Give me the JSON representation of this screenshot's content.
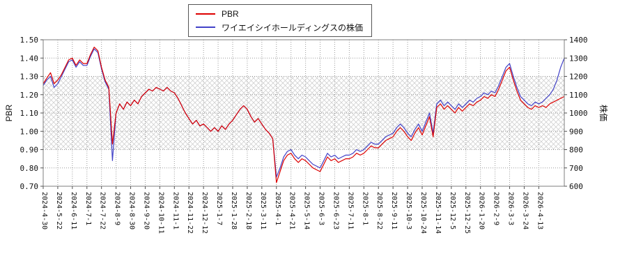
{
  "legend": {
    "items": [
      "PBR",
      "ワイエイシイホールディングスの株価"
    ]
  },
  "chart_data": {
    "type": "line",
    "grid": "dotted",
    "legend_position": "top-center",
    "band": {
      "axis": "left",
      "from": 0.9,
      "to": 1.3,
      "style": "crosshatch",
      "color": "#c9c9c9"
    },
    "left_axis": {
      "label": "PBR",
      "min": 0.7,
      "max": 1.5,
      "tick_labels": [
        "0.70",
        "0.80",
        "0.90",
        "1.00",
        "1.10",
        "1.20",
        "1.30",
        "1.40",
        "1.50"
      ],
      "tick_values": [
        0.7,
        0.8,
        0.9,
        1.0,
        1.1,
        1.2,
        1.3,
        1.4,
        1.5
      ]
    },
    "right_axis": {
      "label": "株価",
      "min": 600,
      "max": 1400,
      "tick_labels": [
        "600",
        "700",
        "800",
        "900",
        "1000",
        "1100",
        "1200",
        "1300",
        "1400"
      ],
      "tick_values": [
        600,
        700,
        800,
        900,
        1000,
        1100,
        1200,
        1300,
        1400
      ]
    },
    "x_tick_labels": [
      "2024-4-30",
      "2024-5-22",
      "2024-6-11",
      "2024-7-1",
      "2024-7-22",
      "2024-8-9",
      "2024-8-30",
      "2024-9-20",
      "2024-10-11",
      "2024-11-1",
      "2024-11-22",
      "2024-12-12",
      "2025-1-7",
      "2025-1-28",
      "2025-2-18",
      "2025-3-11",
      "2025-4-1",
      "2025-4-21",
      "2025-5-14",
      "2025-6-3",
      "2025-6-23",
      "2025-7-11",
      "2025-8-1",
      "2025-8-22",
      "2025-9-11",
      "2025-10-3",
      "2025-10-24",
      "2025-11-14",
      "2025-12-5",
      "2025-12-25",
      "2026-1-20",
      "2026-2-9",
      "2026-3-3",
      "2026-3-24",
      "2026-4-13"
    ],
    "tick_every": 4,
    "series": [
      {
        "name": "PBR",
        "axis": "left",
        "color": "#dd0000",
        "values": [
          1.26,
          1.29,
          1.32,
          1.26,
          1.28,
          1.31,
          1.35,
          1.39,
          1.4,
          1.36,
          1.39,
          1.37,
          1.37,
          1.42,
          1.46,
          1.44,
          1.35,
          1.28,
          1.24,
          0.93,
          1.1,
          1.15,
          1.12,
          1.16,
          1.14,
          1.17,
          1.15,
          1.19,
          1.21,
          1.23,
          1.22,
          1.24,
          1.23,
          1.22,
          1.24,
          1.22,
          1.21,
          1.18,
          1.14,
          1.1,
          1.07,
          1.04,
          1.06,
          1.03,
          1.04,
          1.02,
          1.0,
          1.02,
          1.0,
          1.03,
          1.01,
          1.04,
          1.06,
          1.09,
          1.12,
          1.14,
          1.12,
          1.08,
          1.05,
          1.07,
          1.04,
          1.01,
          0.99,
          0.96,
          0.72,
          0.78,
          0.84,
          0.87,
          0.88,
          0.85,
          0.83,
          0.85,
          0.84,
          0.82,
          0.8,
          0.79,
          0.78,
          0.82,
          0.86,
          0.84,
          0.85,
          0.83,
          0.84,
          0.85,
          0.85,
          0.86,
          0.88,
          0.87,
          0.88,
          0.9,
          0.92,
          0.91,
          0.91,
          0.93,
          0.95,
          0.96,
          0.97,
          1.0,
          1.02,
          1.0,
          0.97,
          0.95,
          0.99,
          1.02,
          0.98,
          1.03,
          1.08,
          0.97,
          1.13,
          1.15,
          1.12,
          1.14,
          1.12,
          1.1,
          1.13,
          1.11,
          1.13,
          1.15,
          1.14,
          1.16,
          1.17,
          1.19,
          1.18,
          1.2,
          1.19,
          1.23,
          1.28,
          1.33,
          1.35,
          1.28,
          1.22,
          1.17,
          1.15,
          1.13,
          1.12,
          1.14,
          1.13,
          1.14,
          1.13,
          1.15,
          1.16,
          1.17,
          1.18,
          1.19
        ]
      },
      {
        "name": "ワイエイシイホールディングスの株価",
        "axis": "right",
        "color": "#4242c8",
        "values": [
          1150,
          1180,
          1200,
          1140,
          1160,
          1200,
          1240,
          1280,
          1290,
          1250,
          1280,
          1260,
          1260,
          1310,
          1350,
          1330,
          1240,
          1170,
          1130,
          740,
          1000,
          1050,
          1020,
          1060,
          1040,
          1070,
          1050,
          1090,
          1110,
          1130,
          1120,
          1140,
          1130,
          1120,
          1140,
          1120,
          1110,
          1080,
          1040,
          1000,
          970,
          940,
          960,
          930,
          940,
          920,
          900,
          920,
          900,
          930,
          910,
          940,
          960,
          990,
          1020,
          1040,
          1020,
          980,
          950,
          970,
          940,
          910,
          890,
          860,
          650,
          700,
          760,
          790,
          800,
          770,
          750,
          770,
          760,
          740,
          720,
          710,
          700,
          740,
          780,
          760,
          770,
          750,
          760,
          770,
          770,
          780,
          800,
          790,
          800,
          820,
          840,
          830,
          830,
          850,
          870,
          880,
          890,
          920,
          940,
          920,
          890,
          870,
          910,
          940,
          900,
          950,
          1000,
          890,
          1050,
          1070,
          1040,
          1060,
          1040,
          1020,
          1050,
          1030,
          1050,
          1070,
          1060,
          1080,
          1090,
          1110,
          1100,
          1120,
          1110,
          1150,
          1200,
          1250,
          1270,
          1200,
          1140,
          1090,
          1070,
          1050,
          1040,
          1060,
          1050,
          1060,
          1080,
          1100,
          1130,
          1180,
          1250,
          1300
        ]
      }
    ]
  }
}
